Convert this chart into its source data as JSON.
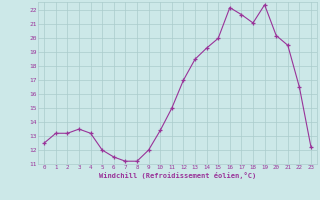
{
  "hours": [
    0,
    1,
    2,
    3,
    4,
    5,
    6,
    7,
    8,
    9,
    10,
    11,
    12,
    13,
    14,
    15,
    16,
    17,
    18,
    19,
    20,
    21,
    22,
    23
  ],
  "values": [
    12.5,
    13.2,
    13.2,
    13.5,
    13.2,
    12.0,
    11.5,
    11.2,
    11.2,
    12.0,
    13.4,
    15.0,
    17.0,
    18.5,
    19.3,
    20.0,
    22.2,
    21.7,
    21.1,
    22.4,
    20.2,
    19.5,
    16.5,
    12.2
  ],
  "line_color": "#993399",
  "marker": "+",
  "bg_color": "#cce8e8",
  "grid_color": "#aacccc",
  "xlabel": "Windchill (Refroidissement éolien,°C)",
  "ylabel_ticks": [
    11,
    12,
    13,
    14,
    15,
    16,
    17,
    18,
    19,
    20,
    21,
    22
  ],
  "xlim": [
    -0.5,
    23.5
  ],
  "ylim": [
    11,
    22.6
  ],
  "tick_color": "#993399",
  "label_color": "#993399"
}
